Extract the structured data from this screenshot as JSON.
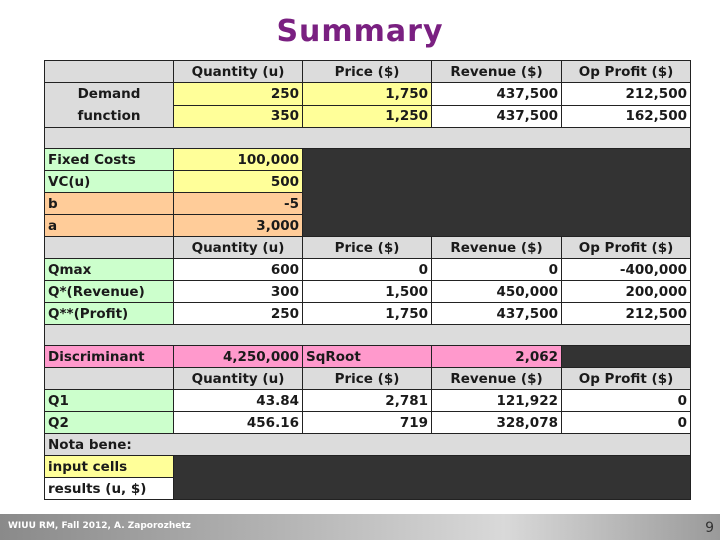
{
  "title": "Summary",
  "headers": {
    "quantity": "Quantity (u)",
    "price": "Price ($)",
    "revenue": "Revenue ($)",
    "profit": "Op Profit ($)"
  },
  "demand": {
    "label_line1": "Demand",
    "label_line2": "function",
    "rows": [
      {
        "q": "250",
        "p": "1,750",
        "r": "437,500",
        "op": "212,500"
      },
      {
        "q": "350",
        "p": "1,250",
        "r": "437,500",
        "op": "162,500"
      }
    ]
  },
  "costs": {
    "fixed_label": "Fixed Costs",
    "fixed_value": "100,000",
    "vc_label": "VC(u)",
    "vc_value": "500"
  },
  "params": {
    "b_label": "b",
    "b_value": "-5",
    "a_label": "a",
    "a_value": "3,000"
  },
  "results": [
    {
      "label": "Qmax",
      "q": "600",
      "p": "0",
      "r": "0",
      "op": "-400,000"
    },
    {
      "label": "Q*(Revenue)",
      "q": "300",
      "p": "1,500",
      "r": "450,000",
      "op": "200,000"
    },
    {
      "label": "Q**(Profit)",
      "q": "250",
      "p": "1,750",
      "r": "437,500",
      "op": "212,500"
    }
  ],
  "discriminant": {
    "label": "Discriminant",
    "value": "4,250,000",
    "sqroot_label": "SqRoot",
    "sqroot_value": "2,062"
  },
  "roots": [
    {
      "label": "Q1",
      "q": "43.84",
      "p": "2,781",
      "r": "121,922",
      "op": "0"
    },
    {
      "label": "Q2",
      "q": "456.16",
      "p": "719",
      "r": "328,078",
      "op": "0"
    }
  ],
  "nota": {
    "title": "Nota bene:",
    "input": "input cells",
    "results": "results (u, $)"
  },
  "footer": {
    "credit": "WIUU RM, Fall 2012, A. Zaporozhetz",
    "page": "9"
  }
}
